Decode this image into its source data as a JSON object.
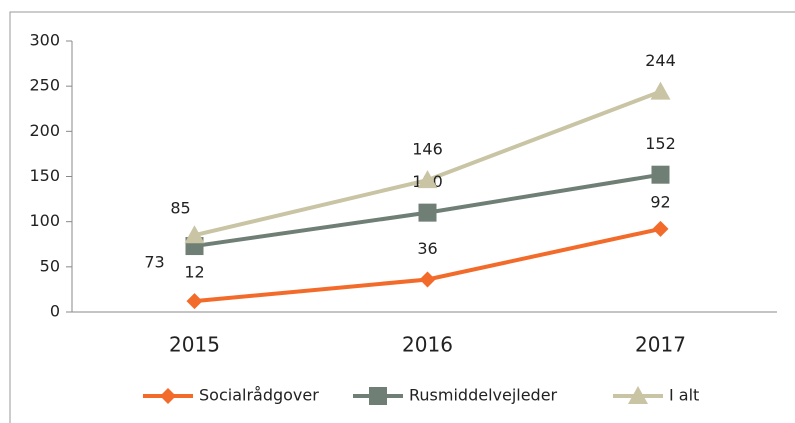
{
  "chart_data": {
    "type": "line",
    "categories": [
      "2015",
      "2016",
      "2017"
    ],
    "series": [
      {
        "name": "Socialrådgover",
        "color": "#f26b2a",
        "marker": "diamond",
        "values": [
          12,
          36,
          92
        ]
      },
      {
        "name": "Rusmiddelvejleder",
        "color": "#6f7f75",
        "marker": "square",
        "values": [
          73,
          110,
          152
        ]
      },
      {
        "name": "I alt",
        "color": "#c8c4a4",
        "marker": "triangle",
        "values": [
          85,
          146,
          244
        ]
      }
    ],
    "ylim": [
      0,
      300
    ],
    "yticks": [
      0,
      50,
      100,
      150,
      200,
      250,
      300
    ],
    "legend": "bottom"
  }
}
